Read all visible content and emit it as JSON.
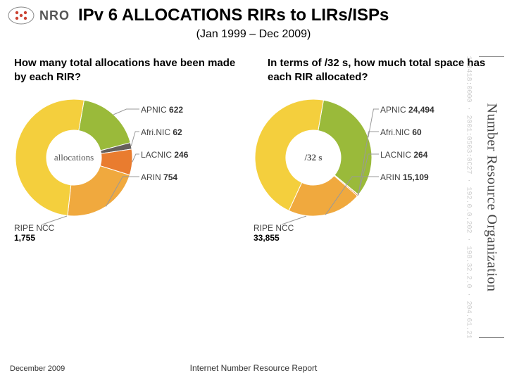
{
  "header": {
    "logo_text": "NRO",
    "title": "IPv 6 ALLOCATIONS RIRs to LIRs/ISPs",
    "subtitle": "(Jan 1999 – Dec 2009)"
  },
  "questions": {
    "left": "How many total allocations have been made by each RIR?",
    "right": "In terms of /32 s, how much total space has each RIR allocated?"
  },
  "colors": {
    "apnic": "#9aba3a",
    "afrinic": "#66605c",
    "lacnic": "#e97c2f",
    "arin": "#f0a93e",
    "ripe": "#f4cf3d",
    "background": "#ffffff",
    "line": "#999999",
    "text": "#333333"
  },
  "chart_left": {
    "type": "donut",
    "center_label": "allocations",
    "bottom": {
      "name": "RIPE NCC",
      "val": "1,755"
    },
    "series": [
      {
        "name": "APNIC",
        "val_label": "622",
        "value": 622,
        "color": "#9aba3a"
      },
      {
        "name": "Afri.NIC",
        "val_label": "62",
        "value": 62,
        "color": "#66605c"
      },
      {
        "name": "LACNIC",
        "val_label": "246",
        "value": 246,
        "color": "#e97c2f"
      },
      {
        "name": "ARIN",
        "val_label": "754",
        "value": 754,
        "color": "#f0a93e"
      },
      {
        "name": "RIPE NCC",
        "val_label": "1,755",
        "value": 1755,
        "color": "#f4cf3d"
      }
    ]
  },
  "chart_right": {
    "type": "donut",
    "center_label": "/32 s",
    "bottom": {
      "name": "RIPE NCC",
      "val": "33,855"
    },
    "series": [
      {
        "name": "APNIC",
        "val_label": "24,494",
        "value": 24494,
        "color": "#9aba3a"
      },
      {
        "name": "Afri.NIC",
        "val_label": "60",
        "value": 60,
        "color": "#66605c"
      },
      {
        "name": "LACNIC",
        "val_label": "264",
        "value": 264,
        "color": "#e97c2f"
      },
      {
        "name": "ARIN",
        "val_label": "15,109",
        "value": 15109,
        "color": "#f0a93e"
      },
      {
        "name": "RIPE NCC",
        "val_label": "33,855",
        "value": 33855,
        "color": "#f4cf3d"
      }
    ]
  },
  "footer": {
    "left": "December 2009",
    "center": "Internet Number Resource Report"
  },
  "side": {
    "brand": "Number Resource Organization",
    "ips": "2001:0418:0000 · 2001:0503:0C27 · 192.0.0.202 · 198.32.2.0 · 204.61.216.0"
  },
  "style": {
    "title_fontsize": 24,
    "subtitle_fontsize": 16,
    "question_fontsize": 15,
    "legend_fontsize": 12,
    "donut_outer_r": 83,
    "donut_inner_r": 39
  }
}
